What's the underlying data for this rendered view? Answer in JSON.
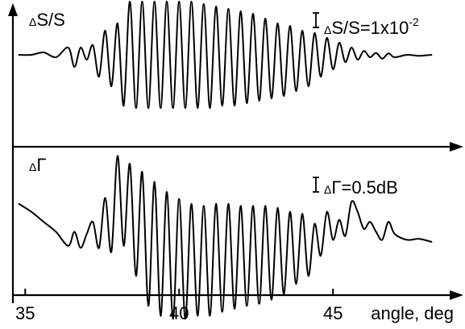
{
  "chart_data": {
    "type": "line",
    "x_axis": {
      "label": "angle, deg",
      "range": [
        34.6,
        49
      ],
      "ticks": [
        {
          "value": 35,
          "label": "35"
        },
        {
          "value": 40,
          "label": "40"
        },
        {
          "value": 45,
          "label": "45"
        }
      ]
    },
    "panels": [
      {
        "id": "top",
        "label_delta": "Δ",
        "label_main": "S/S",
        "scale_bar": {
          "prefix": "Δ",
          "main": "S/S=1x10",
          "exponent": "-2",
          "value": 0.01
        },
        "units_per_scale": 0.01,
        "series": [
          {
            "x": [
              34.8,
              35.2,
              35.6,
              36.0,
              36.4,
              36.6,
              36.8,
              37.0,
              37.2,
              37.4,
              37.6,
              37.8,
              38.0,
              38.2,
              38.4,
              38.6,
              38.8,
              39.0,
              39.2,
              39.4,
              39.6,
              39.8,
              40.0,
              40.2,
              40.4,
              40.6,
              40.8,
              41.0,
              41.2,
              41.4,
              41.6,
              41.8,
              42.0,
              42.2,
              42.4,
              42.6,
              42.8,
              43.0,
              43.2,
              43.4,
              43.6,
              43.8,
              44.0,
              44.2,
              44.4,
              44.6,
              44.8,
              45.0,
              45.2,
              45.4,
              45.6,
              45.8,
              46.0,
              46.2,
              46.4,
              46.6,
              46.8,
              47.0,
              47.4,
              47.8,
              48.2
            ],
            "y": [
              0.0,
              0.0,
              0.0005,
              -0.0005,
              0.0015,
              -0.0025,
              0.0015,
              -0.001,
              0.002,
              -0.0045,
              0.005,
              -0.0065,
              0.0065,
              -0.0105,
              0.011,
              -0.011,
              0.011,
              -0.011,
              0.011,
              -0.011,
              0.011,
              -0.011,
              0.011,
              -0.011,
              0.011,
              -0.011,
              0.0105,
              -0.011,
              0.01,
              -0.0105,
              0.0095,
              -0.0105,
              0.009,
              -0.01,
              0.0085,
              -0.0095,
              0.0075,
              -0.009,
              0.0065,
              -0.0085,
              0.006,
              -0.0075,
              0.005,
              -0.0065,
              0.0045,
              -0.0045,
              0.0035,
              -0.003,
              0.0025,
              -0.0015,
              0.0015,
              -0.001,
              0.0008,
              -0.0005,
              0.0004,
              -0.0008,
              0.0003,
              -0.0005,
              0.0,
              -0.0002,
              0.0
            ]
          }
        ]
      },
      {
        "id": "bottom",
        "label_delta": "Δ",
        "label_main": "Γ",
        "scale_bar": {
          "prefix": "Δ",
          "main": "Γ=0.5dB",
          "exponent": "",
          "value": 0.5
        },
        "units_per_scale": 0.5,
        "series": [
          {
            "x": [
              34.8,
              35.2,
              35.6,
              36.0,
              36.4,
              36.6,
              36.8,
              37.0,
              37.2,
              37.4,
              37.6,
              37.8,
              38.0,
              38.2,
              38.4,
              38.6,
              38.8,
              39.0,
              39.2,
              39.4,
              39.6,
              39.8,
              40.0,
              40.2,
              40.4,
              40.6,
              40.8,
              41.0,
              41.2,
              41.4,
              41.6,
              41.8,
              42.0,
              42.2,
              42.4,
              42.6,
              42.8,
              43.0,
              43.2,
              43.4,
              43.6,
              43.8,
              44.0,
              44.2,
              44.4,
              44.6,
              44.8,
              45.0,
              45.2,
              45.4,
              45.6,
              45.8,
              46.0,
              46.2,
              46.4,
              46.6,
              46.8,
              47.0,
              47.4,
              47.8,
              48.2
            ],
            "y": [
              0.3,
              0.22,
              0.12,
              0.02,
              -0.12,
              0.02,
              -0.14,
              0.0,
              0.12,
              -0.14,
              0.36,
              -0.18,
              0.78,
              -0.12,
              0.7,
              -0.42,
              0.62,
              -0.72,
              0.52,
              -0.82,
              0.42,
              -0.85,
              0.35,
              -0.85,
              0.3,
              -0.82,
              0.28,
              -0.82,
              0.3,
              -0.78,
              0.3,
              -0.75,
              0.28,
              -0.72,
              0.28,
              -0.7,
              0.28,
              -0.66,
              0.26,
              -0.6,
              0.22,
              -0.5,
              0.2,
              -0.42,
              0.1,
              -0.22,
              0.22,
              -0.06,
              0.14,
              -0.02,
              0.32,
              0.22,
              0.05,
              0.12,
              0.02,
              -0.06,
              0.12,
              0.0,
              -0.06,
              -0.05,
              -0.08
            ]
          }
        ]
      }
    ]
  }
}
